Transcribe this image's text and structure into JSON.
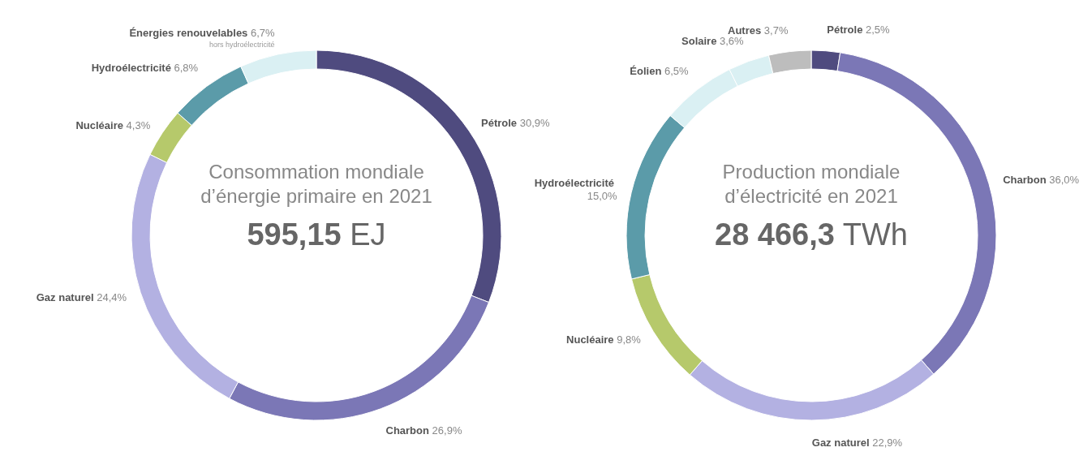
{
  "chart_data": [
    {
      "type": "donut",
      "title": "Consommation mondiale d’énergie primaire en 2021",
      "subtitle": "595,15 EJ",
      "categories": [
        "Pétrole",
        "Charbon",
        "Gaz naturel",
        "Nucléaire",
        "Hydroélectricité",
        "Énergies renouvelables"
      ],
      "values": [
        30.9,
        26.9,
        24.4,
        4.3,
        6.8,
        6.7
      ],
      "value_labels": [
        "30,9%",
        "26,9%",
        "24,4%",
        "4,3%",
        "6,8%",
        "6,7%"
      ],
      "colors": [
        "#4f4b7f",
        "#7b77b6",
        "#b3b1e2",
        "#b6c96b",
        "#5b9ba9",
        "#daf0f3"
      ],
      "annotations": [
        {
          "text": "hors hydroélectricité",
          "x": "Énergies renouvelables"
        }
      ]
    },
    {
      "type": "donut",
      "title": "Production mondiale d’électricité en 2021",
      "subtitle": "28 466,3 TWh",
      "categories": [
        "Pétrole",
        "Charbon",
        "Gaz naturel",
        "Nucléaire",
        "Hydroélectricité",
        "Éolien",
        "Solaire",
        "Autres"
      ],
      "values": [
        2.5,
        36.0,
        22.9,
        9.8,
        15.0,
        6.5,
        3.6,
        3.7
      ],
      "value_labels": [
        "2,5%",
        "36,0%",
        "22,9%",
        "9,8%",
        "15,0%",
        "6,5%",
        "3,6%",
        "3,7%"
      ],
      "colors": [
        "#4f4b7f",
        "#7b77b6",
        "#b3b1e2",
        "#b6c96b",
        "#5b9ba9",
        "#daf0f3",
        "#daf0f3",
        "#bdbdbd"
      ]
    }
  ]
}
